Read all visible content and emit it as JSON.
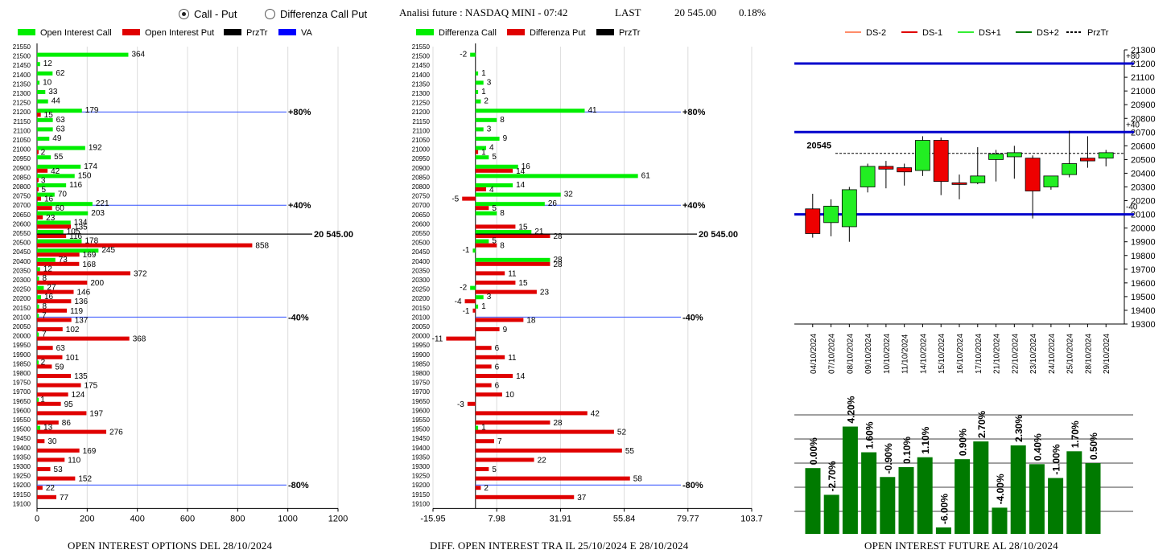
{
  "header": {
    "radio_call_put": "Call - Put",
    "radio_diff": "Differenza Call Put",
    "analysis_label": "Analisi future : NASDAQ MINI - 07:42",
    "last_label": "LAST",
    "last_value": "20 545.00",
    "last_change": "0.18%"
  },
  "panels": {
    "left_title": "OPEN INTEREST OPTIONS DEL 28/10/2024",
    "mid_title": "DIFF. OPEN INTEREST TRA IL 25/10/2024 E 28/10/2024",
    "right_title": "OPEN INTEREST FUTURE AL 28/10/2024"
  },
  "colors": {
    "call": "#00ee00",
    "put": "#e00000",
    "price": "#000000",
    "va": "#0000ff",
    "bar_green": "#007a00",
    "level_blue": "#0000cc"
  },
  "chart_data": [
    {
      "type": "bar",
      "legend": [
        "Open Interest Call",
        "Open Interest Put",
        "PrzTr",
        "VA"
      ],
      "strikes": [
        21550,
        21500,
        21450,
        21400,
        21350,
        21300,
        21250,
        21200,
        21150,
        21100,
        21050,
        21000,
        20950,
        20900,
        20850,
        20800,
        20750,
        20700,
        20650,
        20600,
        20550,
        20500,
        20450,
        20400,
        20350,
        20300,
        20250,
        20200,
        20150,
        20100,
        20050,
        20000,
        19950,
        19900,
        19850,
        19800,
        19750,
        19700,
        19650,
        19600,
        19550,
        19500,
        19450,
        19400,
        19350,
        19300,
        19250,
        19200,
        19150,
        19100
      ],
      "series": [
        {
          "name": "Open Interest Call",
          "values": [
            null,
            364,
            12,
            62,
            10,
            33,
            44,
            179,
            63,
            63,
            49,
            192,
            55,
            174,
            150,
            116,
            70,
            221,
            203,
            134,
            105,
            178,
            245,
            73,
            12,
            8,
            27,
            16,
            8,
            7,
            null,
            7,
            null,
            null,
            2,
            null,
            null,
            null,
            1,
            null,
            null,
            13,
            null,
            null,
            null,
            null,
            null,
            null,
            null,
            null
          ]
        },
        {
          "name": "Open Interest Put",
          "values": [
            null,
            null,
            null,
            null,
            null,
            null,
            null,
            15,
            null,
            null,
            null,
            2,
            null,
            42,
            3,
            5,
            16,
            60,
            23,
            135,
            116,
            858,
            169,
            168,
            372,
            200,
            146,
            136,
            119,
            137,
            102,
            368,
            63,
            101,
            59,
            135,
            175,
            124,
            95,
            197,
            86,
            276,
            30,
            169,
            110,
            53,
            152,
            22,
            77,
            null
          ]
        }
      ],
      "price": {
        "value": 20545,
        "label": "20 545.00"
      },
      "levels": [
        {
          "strike": 21200,
          "label": "+80%"
        },
        {
          "strike": 20700,
          "label": "+40%"
        },
        {
          "strike": 20100,
          "label": "-40%"
        },
        {
          "strike": 19200,
          "label": "-80%"
        }
      ],
      "xlim": [
        0,
        1200
      ],
      "xticks": [
        "0",
        "200",
        "400",
        "600",
        "800",
        "1000",
        "1200"
      ]
    },
    {
      "type": "bar",
      "legend": [
        "Differenza Call",
        "Differenza Put",
        "PrzTr"
      ],
      "strikes": [
        21550,
        21500,
        21450,
        21400,
        21350,
        21300,
        21250,
        21200,
        21150,
        21100,
        21050,
        21000,
        20950,
        20900,
        20850,
        20800,
        20750,
        20700,
        20650,
        20600,
        20550,
        20500,
        20450,
        20400,
        20350,
        20300,
        20250,
        20200,
        20150,
        20100,
        20050,
        20000,
        19950,
        19900,
        19850,
        19800,
        19750,
        19700,
        19650,
        19600,
        19550,
        19500,
        19450,
        19400,
        19350,
        19300,
        19250,
        19200,
        19150,
        19100
      ],
      "series": [
        {
          "name": "Differenza Call",
          "values": [
            null,
            -2,
            null,
            1,
            3,
            1,
            2,
            41,
            8,
            3,
            9,
            4,
            5,
            16,
            61,
            14,
            32,
            26,
            8,
            null,
            21,
            5,
            -1,
            28,
            null,
            null,
            -2,
            3,
            1,
            null,
            null,
            null,
            null,
            null,
            null,
            null,
            null,
            null,
            null,
            null,
            null,
            1,
            null,
            null,
            null,
            null,
            null,
            null,
            null,
            null
          ]
        },
        {
          "name": "Differenza Put",
          "values": [
            null,
            null,
            null,
            null,
            null,
            null,
            null,
            null,
            null,
            null,
            null,
            1,
            null,
            14,
            null,
            4,
            -5,
            5,
            null,
            15,
            28,
            8,
            null,
            28,
            11,
            15,
            23,
            -4,
            -1,
            18,
            9,
            -11,
            6,
            11,
            6,
            14,
            6,
            10,
            -3,
            42,
            28,
            52,
            7,
            55,
            22,
            5,
            58,
            2,
            37,
            null
          ]
        }
      ],
      "price": {
        "value": 20545,
        "label": "20 545.00"
      },
      "levels": [
        {
          "strike": 21200,
          "label": "+80%"
        },
        {
          "strike": 20700,
          "label": "+40%"
        },
        {
          "strike": 20100,
          "label": "-40%"
        },
        {
          "strike": 19200,
          "label": "-80%"
        }
      ],
      "xlim": [
        -15.95,
        103.7
      ],
      "xticks": [
        "-15.95",
        "7.98",
        "31.91",
        "55.84",
        "79.77",
        "103.7"
      ]
    },
    {
      "type": "candlestick",
      "legend": [
        "DS-2",
        "DS-1",
        "DS+1",
        "DS+2",
        "PrzTr"
      ],
      "dates": [
        "04/10/2024",
        "07/10/2024",
        "08/10/2024",
        "09/10/2024",
        "10/10/2024",
        "11/10/2024",
        "14/10/2024",
        "15/10/2024",
        "16/10/2024",
        "17/10/2024",
        "21/10/2024",
        "22/10/2024",
        "23/10/2024",
        "24/10/2024",
        "25/10/2024",
        "28/10/2024",
        "29/10/2024"
      ],
      "ohlc": [
        [
          20140,
          20250,
          19930,
          19960
        ],
        [
          20040,
          20210,
          19940,
          20160
        ],
        [
          20010,
          20300,
          19900,
          20280
        ],
        [
          20300,
          20470,
          20260,
          20450
        ],
        [
          20450,
          20490,
          20290,
          20430
        ],
        [
          20440,
          20470,
          20310,
          20410
        ],
        [
          20420,
          20670,
          20380,
          20640
        ],
        [
          20640,
          20660,
          20240,
          20340
        ],
        [
          20330,
          20390,
          20210,
          20320
        ],
        [
          20330,
          20590,
          20320,
          20380
        ],
        [
          20500,
          20570,
          20340,
          20540
        ],
        [
          20520,
          20600,
          20360,
          20550
        ],
        [
          20510,
          20530,
          20070,
          20270
        ],
        [
          20300,
          20380,
          20280,
          20380
        ],
        [
          20390,
          20710,
          20370,
          20470
        ],
        [
          20510,
          20670,
          20440,
          20490
        ],
        [
          20510,
          20570,
          20450,
          20550
        ]
      ],
      "price_marker": "20545",
      "levels": [
        {
          "value": 21200,
          "label": "+80"
        },
        {
          "value": 20700,
          "label": "+40"
        },
        {
          "value": 20100,
          "label": "-40"
        }
      ],
      "ylim": [
        19300,
        21300
      ],
      "yticks": [
        "19300",
        "19400",
        "19500",
        "19600",
        "19700",
        "19800",
        "19900",
        "20000",
        "20100",
        "20200",
        "20300",
        "20400",
        "20500",
        "20600",
        "20700",
        "20800",
        "20900",
        "21000",
        "21100",
        "21200",
        "21300"
      ]
    },
    {
      "type": "bar",
      "values": [
        0.0,
        -2.7,
        4.2,
        1.6,
        -0.9,
        0.1,
        1.1,
        -6.0,
        0.9,
        2.7,
        -4.0,
        2.3,
        0.4,
        -1.0,
        1.7,
        0.5
      ],
      "labels": [
        "0.00%",
        "-2.70%",
        "4.20%",
        "1.60%",
        "-0.90%",
        "0.10%",
        "1.10%",
        "-6.00%",
        "0.90%",
        "2.70%",
        "-4.00%",
        "2.30%",
        "0.40%",
        "-1.00%",
        "1.70%",
        "0.50%"
      ]
    }
  ]
}
